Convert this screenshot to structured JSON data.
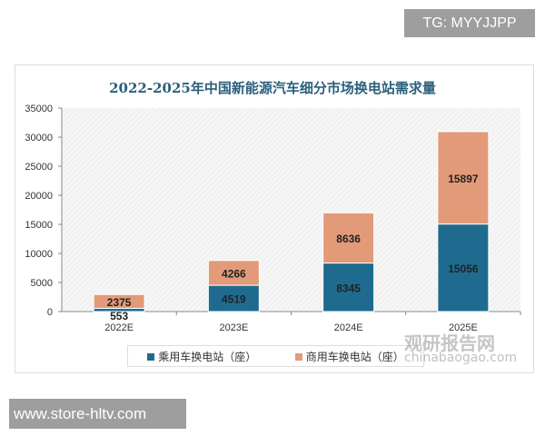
{
  "badges": {
    "tg": "TG: MYYJJPP",
    "site": "www.store-hltv.com"
  },
  "watermark": {
    "name": "观研报告网",
    "domain": "chinabaogao.com"
  },
  "colors": {
    "passenger": "#1f6b8f",
    "commercial": "#e39a78"
  },
  "chart_data": {
    "type": "bar",
    "stacked": true,
    "title": "2022-2025年中国新能源汽车细分市场换电站需求量",
    "categories": [
      "2022E",
      "2023E",
      "2024E",
      "2025E"
    ],
    "series": [
      {
        "name": "乘用车换电站（座）",
        "values": [
          553,
          4519,
          8345,
          15056
        ]
      },
      {
        "name": "商用车换电站（座）",
        "values": [
          2375,
          4266,
          8636,
          15897
        ]
      }
    ],
    "yticks": [
      "0",
      "5000",
      "10000",
      "15000",
      "20000",
      "25000",
      "30000",
      "35000"
    ],
    "ylim": [
      0,
      35000
    ],
    "legend": "bottom",
    "grid": false
  }
}
